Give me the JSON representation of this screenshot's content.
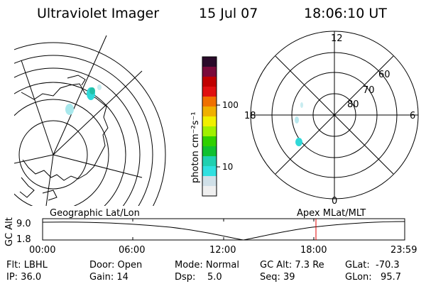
{
  "header": {
    "instrument": "Ultraviolet Imager",
    "date": "15 Jul 07",
    "time": "18:06:10 UT"
  },
  "colorbar": {
    "unit_label": "photon cm⁻²s⁻¹",
    "tick_100": "100",
    "tick_10": "10",
    "colors": [
      "#2a0a2a",
      "#7a0a3a",
      "#c00000",
      "#e01010",
      "#f07000",
      "#f0b000",
      "#f0f000",
      "#a0f000",
      "#30d000",
      "#10c030",
      "#20d0b0",
      "#30e0e0",
      "#d0e0e8",
      "#f0f0f0"
    ]
  },
  "polar_plot": {
    "labels": {
      "top": "12",
      "bottom": "0",
      "left": "18",
      "right": "6",
      "lat_60": "60",
      "lat_70": "70",
      "lat_80": "80"
    }
  },
  "timeline": {
    "left_title": "Geographic Lat/Lon",
    "right_title": "Apex MLat/MLT",
    "axis_label": "GC Alt",
    "y_top": "9.0",
    "y_bottom": "1.8",
    "x_ticks": [
      "00:00",
      "06:00",
      "12:00",
      "18:00",
      "23:59"
    ],
    "current_time_marker": "18:06:10",
    "marker_color": "#e00000"
  },
  "status": {
    "flt": "Flt: LBHL",
    "ip": "IP: 36.0",
    "door": "Door: Open",
    "gain": "Gain: 14",
    "mode": "Mode: Normal",
    "dsp": "Dsp:    5.0",
    "gc_alt": "GC Alt: 7.3 Re",
    "seq": "Seq: 39",
    "glat": "GLat:  -70.3",
    "glon": "GLon:   95.7"
  }
}
